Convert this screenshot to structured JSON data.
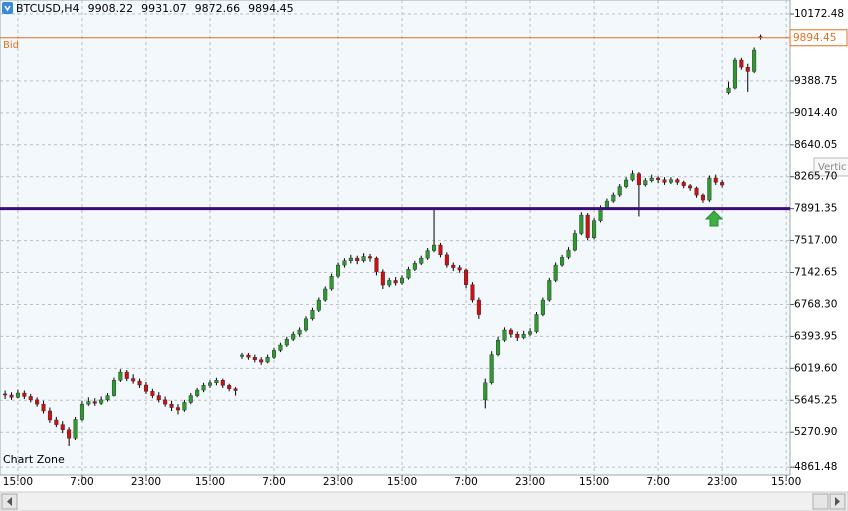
{
  "chart_data": {
    "type": "candlestick",
    "symbol": "BTCUSD,H4",
    "label_bid": "Bid",
    "watermark": "Chart Zone",
    "tooltip": "Vertic",
    "up_color": "#2e9a2e",
    "down_color": "#d01010",
    "wick_color": "#000000",
    "grid": true,
    "xlim": [
      -0.8,
      122.6
    ],
    "ylim": [
      4828,
      10337
    ],
    "xticks": [
      {
        "value": 2,
        "label": "15:00"
      },
      {
        "value": 12,
        "label": "7:00"
      },
      {
        "value": 22,
        "label": "23:00"
      },
      {
        "value": 32,
        "label": "15:00"
      },
      {
        "value": 42,
        "label": "7:00"
      },
      {
        "value": 52,
        "label": "23:00"
      },
      {
        "value": 62,
        "label": "15:00"
      },
      {
        "value": 72,
        "label": "7:00"
      },
      {
        "value": 82,
        "label": "23:00"
      },
      {
        "value": 92,
        "label": "15:00"
      },
      {
        "value": 102,
        "label": "7:00"
      },
      {
        "value": 112,
        "label": "23:00"
      },
      {
        "value": 122,
        "label": "15:00"
      }
    ],
    "yticks": [
      10172.48,
      9388.75,
      {
        "value": 9014.4,
        "label": "9014.40"
      },
      8640.05,
      {
        "value": 8265.7,
        "label": "8265.70"
      },
      7891.35,
      {
        "value": 7517,
        "label": "7517.00"
      },
      7142.65,
      {
        "value": 6768.3,
        "label": "6768.30"
      },
      6393.95,
      {
        "value": 6019.6,
        "label": "6019.60"
      },
      5645.25,
      {
        "value": 5270.9,
        "label": "5270.90"
      },
      4861.48
    ],
    "hlines": [
      {
        "value": 7891.35,
        "color": "#3d0a78"
      }
    ],
    "bid_color": "#e07020",
    "candles": [
      [
        5720,
        5760,
        5660,
        5707
      ],
      [
        5707,
        5740,
        5650,
        5680
      ],
      [
        5680,
        5770,
        5670,
        5730
      ],
      [
        5730,
        5760,
        5660,
        5690
      ],
      [
        5690,
        5720,
        5620,
        5650
      ],
      [
        5650,
        5680,
        5570,
        5600
      ],
      [
        5600,
        5640,
        5490,
        5520
      ],
      [
        5520,
        5560,
        5380,
        5414
      ],
      [
        5414,
        5450,
        5330,
        5360
      ],
      [
        5360,
        5400,
        5260,
        5300
      ],
      [
        5300,
        5330,
        5110,
        5200
      ],
      [
        5200,
        5450,
        5180,
        5420
      ],
      [
        5420,
        5640,
        5400,
        5600
      ],
      [
        5600,
        5680,
        5580,
        5630
      ],
      [
        5630,
        5670,
        5580,
        5610
      ],
      [
        5610,
        5690,
        5590,
        5650
      ],
      [
        5650,
        5730,
        5630,
        5700
      ],
      [
        5700,
        5910,
        5690,
        5880
      ],
      [
        5880,
        6010,
        5860,
        5976
      ],
      [
        5976,
        6000,
        5870,
        5900
      ],
      [
        5900,
        5950,
        5840,
        5870
      ],
      [
        5870,
        5900,
        5790,
        5824
      ],
      [
        5824,
        5860,
        5720,
        5750
      ],
      [
        5750,
        5780,
        5670,
        5700
      ],
      [
        5700,
        5740,
        5620,
        5650
      ],
      [
        5650,
        5690,
        5570,
        5600
      ],
      [
        5600,
        5640,
        5520,
        5560
      ],
      [
        5560,
        5600,
        5480,
        5531
      ],
      [
        5531,
        5650,
        5510,
        5620
      ],
      [
        5620,
        5730,
        5600,
        5700
      ],
      [
        5700,
        5790,
        5680,
        5765
      ],
      [
        5765,
        5850,
        5740,
        5820
      ],
      [
        5820,
        5880,
        5790,
        5850
      ],
      [
        5850,
        5910,
        5820,
        5880
      ],
      [
        5880,
        5900,
        5790,
        5820
      ],
      [
        5820,
        5840,
        5750,
        5780
      ],
      [
        5780,
        5800,
        5700,
        5760
      ],
      [
        6160,
        6200,
        6130,
        6176
      ],
      [
        6176,
        6200,
        6120,
        6150
      ],
      [
        6150,
        6180,
        6090,
        6120
      ],
      [
        6120,
        6150,
        6060,
        6093
      ],
      [
        6093,
        6180,
        6080,
        6150
      ],
      [
        6150,
        6260,
        6130,
        6230
      ],
      [
        6230,
        6320,
        6210,
        6293
      ],
      [
        6293,
        6390,
        6270,
        6360
      ],
      [
        6360,
        6450,
        6340,
        6420
      ],
      [
        6420,
        6500,
        6390,
        6469
      ],
      [
        6469,
        6630,
        6450,
        6600
      ],
      [
        6600,
        6730,
        6580,
        6700
      ],
      [
        6700,
        6850,
        6680,
        6820
      ],
      [
        6820,
        6980,
        6800,
        6950
      ],
      [
        6950,
        7130,
        6930,
        7100
      ],
      [
        7100,
        7260,
        7080,
        7230
      ],
      [
        7230,
        7310,
        7200,
        7280
      ],
      [
        7280,
        7350,
        7250,
        7312
      ],
      [
        7312,
        7340,
        7240,
        7280
      ],
      [
        7280,
        7370,
        7260,
        7330
      ],
      [
        7330,
        7360,
        7270,
        7312
      ],
      [
        7312,
        7330,
        7110,
        7150
      ],
      [
        7150,
        7180,
        6950,
        6996
      ],
      [
        6996,
        7080,
        6970,
        7050
      ],
      [
        7050,
        7090,
        6990,
        7020
      ],
      [
        7020,
        7110,
        7000,
        7078
      ],
      [
        7078,
        7210,
        7060,
        7180
      ],
      [
        7180,
        7280,
        7160,
        7250
      ],
      [
        7250,
        7340,
        7230,
        7312
      ],
      [
        7312,
        7430,
        7290,
        7400
      ],
      [
        7400,
        7895,
        7380,
        7465
      ],
      [
        7465,
        7490,
        7320,
        7350
      ],
      [
        7350,
        7380,
        7200,
        7230
      ],
      [
        7230,
        7260,
        7160,
        7200
      ],
      [
        7200,
        7230,
        7140,
        7172
      ],
      [
        7172,
        7190,
        6960,
        7000
      ],
      [
        7000,
        7030,
        6790,
        6820
      ],
      [
        6820,
        6850,
        6600,
        6650
      ],
      [
        5650,
        5900,
        5550,
        5850
      ],
      [
        5850,
        6220,
        5830,
        6180
      ],
      [
        6180,
        6390,
        6160,
        6350
      ],
      [
        6350,
        6500,
        6330,
        6469
      ],
      [
        6469,
        6490,
        6380,
        6420
      ],
      [
        6420,
        6450,
        6340,
        6380
      ],
      [
        6380,
        6460,
        6360,
        6420
      ],
      [
        6420,
        6490,
        6400,
        6450
      ],
      [
        6450,
        6680,
        6430,
        6650
      ],
      [
        6650,
        6850,
        6630,
        6820
      ],
      [
        6820,
        7080,
        6800,
        7050
      ],
      [
        7050,
        7260,
        7030,
        7230
      ],
      [
        7230,
        7350,
        7210,
        7320
      ],
      [
        7320,
        7440,
        7300,
        7406
      ],
      [
        7406,
        7640,
        7390,
        7600
      ],
      [
        7600,
        7850,
        7580,
        7816
      ],
      [
        7816,
        7840,
        7520,
        7550
      ],
      [
        7550,
        7780,
        7530,
        7750
      ],
      [
        7750,
        7930,
        7730,
        7900
      ],
      [
        7900,
        8010,
        7880,
        7980
      ],
      [
        7980,
        8080,
        7960,
        8051
      ],
      [
        8051,
        8180,
        8030,
        8150
      ],
      [
        8150,
        8260,
        8130,
        8227
      ],
      [
        8227,
        8340,
        8210,
        8300
      ],
      [
        8300,
        8320,
        7800,
        8170
      ],
      [
        8170,
        8250,
        8150,
        8220
      ],
      [
        8220,
        8290,
        8200,
        8250
      ],
      [
        8250,
        8270,
        8190,
        8230
      ],
      [
        8230,
        8260,
        8170,
        8200
      ],
      [
        8200,
        8260,
        8180,
        8230
      ],
      [
        8230,
        8250,
        8170,
        8200
      ],
      [
        8200,
        8220,
        8130,
        8160
      ],
      [
        8160,
        8180,
        8100,
        8133
      ],
      [
        8133,
        8150,
        8020,
        8050
      ],
      [
        8050,
        8070,
        7960,
        7992
      ],
      [
        7992,
        8280,
        7970,
        8250
      ],
      [
        8250,
        8290,
        8170,
        8200
      ],
      [
        8200,
        8230,
        8140,
        8168
      ],
      [
        9250,
        9380,
        9230,
        9305
      ],
      [
        9305,
        9660,
        9290,
        9633
      ],
      [
        9633,
        9660,
        9520,
        9550
      ],
      [
        9550,
        9590,
        9260,
        9500
      ],
      [
        9500,
        9780,
        9480,
        9750
      ],
      [
        9908.22,
        9931.07,
        9872.66,
        9894.45
      ]
    ]
  }
}
